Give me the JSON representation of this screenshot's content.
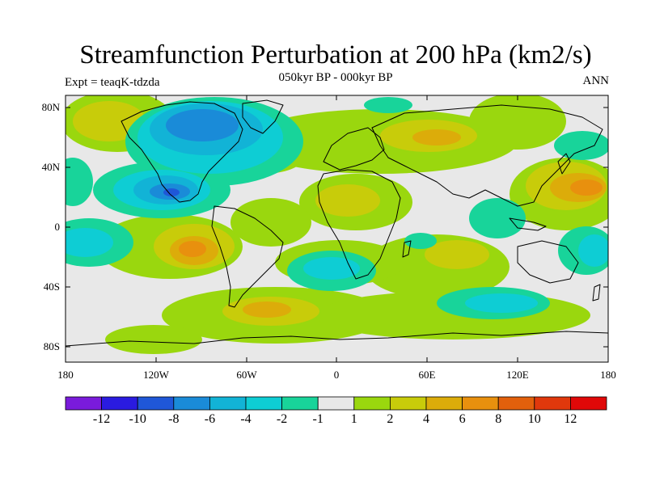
{
  "title": "Streamfunction Perturbation at 200 hPa (km2/s)",
  "subtitle": "050kyr BP - 000kyr BP",
  "left_label": "Expt = teaqK-tdzda",
  "right_label": "ANN",
  "lat_labels": [
    "80N",
    "40N",
    "0",
    "40S",
    "80S"
  ],
  "lon_labels": [
    "180",
    "120W",
    "60W",
    "0",
    "60E",
    "120E",
    "180"
  ],
  "colorbar": {
    "labels": [
      "-12",
      "-10",
      "-8",
      "-6",
      "-4",
      "-2",
      "-1",
      "1",
      "2",
      "4",
      "6",
      "8",
      "10",
      "12"
    ],
    "colors": [
      "#7a1bdb",
      "#2a1be0",
      "#1f57d8",
      "#1a8bd8",
      "#12b3d6",
      "#0ecdd4",
      "#18d49a",
      "#e8e8e8",
      "#9ad70e",
      "#c8cc0a",
      "#dcac0a",
      "#e8900e",
      "#e2600c",
      "#e0380c",
      "#e00808"
    ]
  },
  "colors": {
    "ocean_bg": "#e8e8e8",
    "coast": "#000000"
  }
}
